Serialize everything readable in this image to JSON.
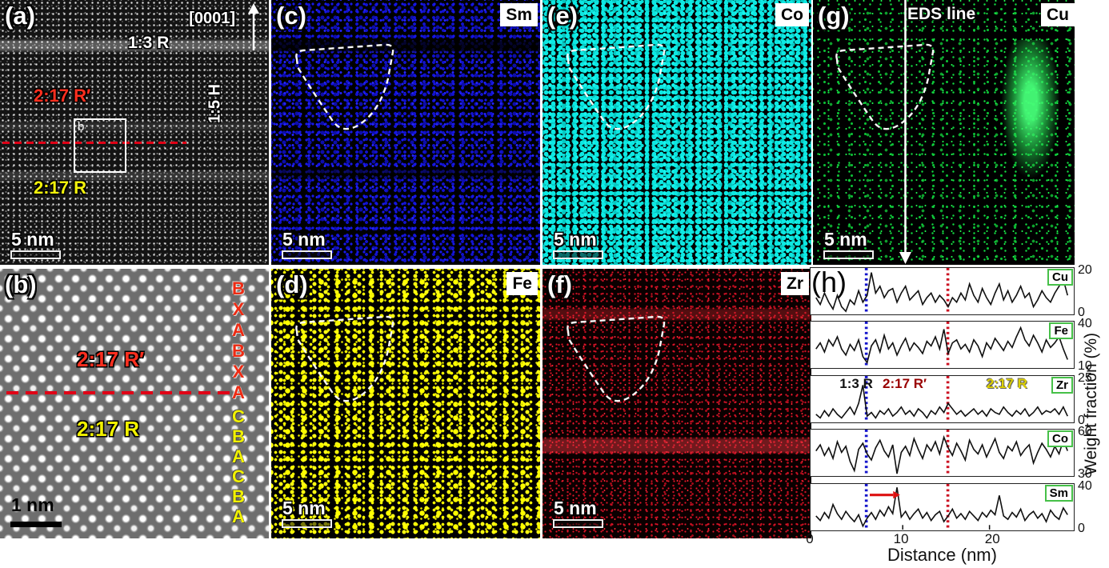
{
  "figure": {
    "panels": {
      "a": {
        "label": "(a)",
        "zone_axis": "[0001]",
        "phase_13R": "1:3 R",
        "phase_217Rp": "2:17 R′",
        "phase_15H": "1:5 H",
        "phase_217R": "2:17 R",
        "box_label": "b",
        "scalebar": "5 nm"
      },
      "b": {
        "label": "(b)",
        "phase_217Rp": "2:17 R′",
        "phase_217R": "2:17 R",
        "stacking_red": [
          "B",
          "X",
          "A",
          "B",
          "X",
          "A"
        ],
        "stacking_yellow": [
          "C",
          "B",
          "A",
          "C",
          "B",
          "A"
        ],
        "scalebar": "1 nm"
      },
      "c": {
        "label": "(c)",
        "element": "Sm",
        "scalebar": "5 nm",
        "color": "#1717e8"
      },
      "d": {
        "label": "(d)",
        "element": "Fe",
        "scalebar": "5 nm",
        "color": "#f5f500"
      },
      "e": {
        "label": "(e)",
        "element": "Co",
        "scalebar": "5 nm",
        "color": "#0ce8e2"
      },
      "f": {
        "label": "(f)",
        "element": "Zr",
        "scalebar": "5 nm",
        "color": "#e8142a"
      },
      "g": {
        "label": "(g)",
        "element": "Cu",
        "scalebar": "5 nm",
        "color": "#12d940",
        "eds_line_label": "EDS line"
      },
      "h": {
        "label": "(h)"
      }
    }
  },
  "chart_data": {
    "type": "line",
    "xlabel": "Distance (nm)",
    "ylabel": "Weight fraction (%)",
    "xlim": [
      0,
      29
    ],
    "x_ticks": [
      0,
      10,
      20
    ],
    "marker_lines": [
      {
        "name": "boundary-1-3R",
        "x_nm": 5.8,
        "color": "#1515cc"
      },
      {
        "name": "boundary-2-17",
        "x_nm": 15.2,
        "color": "#cc1122"
      }
    ],
    "region_labels": [
      {
        "text": "1:3 R",
        "color": "#111111",
        "anchor_nm": 5.0,
        "outline": "none"
      },
      {
        "text": "2:17 R′",
        "color": "#990000",
        "anchor_nm": 10.3,
        "outline": "white"
      },
      {
        "text": "2:17 R",
        "color": "#ddd000",
        "anchor_nm": 21.5,
        "outline": "dark"
      }
    ],
    "series": [
      {
        "name": "Cu",
        "ylim": [
          0,
          20
        ],
        "values": [
          7,
          4,
          9,
          5,
          2,
          8,
          3,
          1,
          6,
          4,
          10,
          5,
          8,
          18,
          9,
          12,
          7,
          10,
          11,
          5,
          9,
          12,
          6,
          8,
          10,
          4,
          7,
          9,
          5,
          8,
          6,
          3,
          7,
          5,
          9,
          6,
          13,
          8,
          5,
          11,
          7,
          4,
          9,
          13,
          6,
          10,
          5,
          8,
          12,
          7,
          9,
          3,
          6,
          10,
          7,
          5,
          9,
          12,
          15,
          8
        ]
      },
      {
        "name": "Fe",
        "ylim": [
          10,
          40
        ],
        "values": [
          22,
          26,
          20,
          28,
          24,
          30,
          22,
          18,
          25,
          21,
          28,
          17,
          13,
          24,
          28,
          20,
          31,
          22,
          26,
          18,
          24,
          29,
          21,
          26,
          23,
          19,
          27,
          24,
          30,
          22,
          35,
          19,
          26,
          28,
          22,
          25,
          20,
          28,
          24,
          17,
          26,
          22,
          29,
          25,
          21,
          27,
          23,
          30,
          36,
          28,
          24,
          31,
          26,
          20,
          28,
          23,
          26,
          30,
          22,
          15
        ]
      },
      {
        "name": "Zr",
        "ylim": [
          0,
          25
        ],
        "values": [
          4,
          2,
          6,
          3,
          7,
          4,
          2,
          5,
          8,
          4,
          10,
          20,
          3,
          5,
          2,
          6,
          4,
          7,
          3,
          5,
          8,
          4,
          6,
          3,
          7,
          5,
          2,
          6,
          4,
          8,
          5,
          10,
          7,
          4,
          6,
          3,
          5,
          7,
          4,
          6,
          3,
          7,
          5,
          4,
          8,
          5,
          3,
          6,
          4,
          7,
          3,
          5,
          8,
          4,
          6,
          5,
          7,
          4,
          8,
          3
        ]
      },
      {
        "name": "Co",
        "ylim": [
          30,
          60
        ],
        "values": [
          46,
          50,
          43,
          48,
          41,
          52,
          45,
          49,
          39,
          33,
          47,
          51,
          44,
          40,
          48,
          53,
          46,
          42,
          50,
          31,
          45,
          49,
          43,
          54,
          47,
          41,
          50,
          46,
          52,
          44,
          55,
          48,
          43,
          51,
          46,
          40,
          53,
          47,
          44,
          50,
          42,
          48,
          54,
          45,
          41,
          49,
          46,
          52,
          43,
          47,
          50,
          38,
          45,
          51,
          47,
          42,
          49,
          44,
          53,
          46
        ]
      },
      {
        "name": "Sm",
        "ylim": [
          0,
          40
        ],
        "values": [
          12,
          8,
          15,
          10,
          22,
          14,
          9,
          16,
          11,
          7,
          13,
          3,
          10,
          15,
          9,
          17,
          12,
          20,
          14,
          37,
          11,
          16,
          9,
          14,
          18,
          10,
          15,
          8,
          13,
          16,
          7,
          12,
          18,
          10,
          14,
          9,
          16,
          12,
          8,
          15,
          11,
          17,
          13,
          30,
          12,
          9,
          15,
          11,
          18,
          8,
          13,
          16,
          10,
          14,
          7,
          17,
          12,
          9,
          19,
          13
        ],
        "arrow": {
          "from_nm": 6.2,
          "to_nm": 8.9,
          "y_frac": 0.24,
          "color": "#dd1111"
        }
      }
    ]
  }
}
